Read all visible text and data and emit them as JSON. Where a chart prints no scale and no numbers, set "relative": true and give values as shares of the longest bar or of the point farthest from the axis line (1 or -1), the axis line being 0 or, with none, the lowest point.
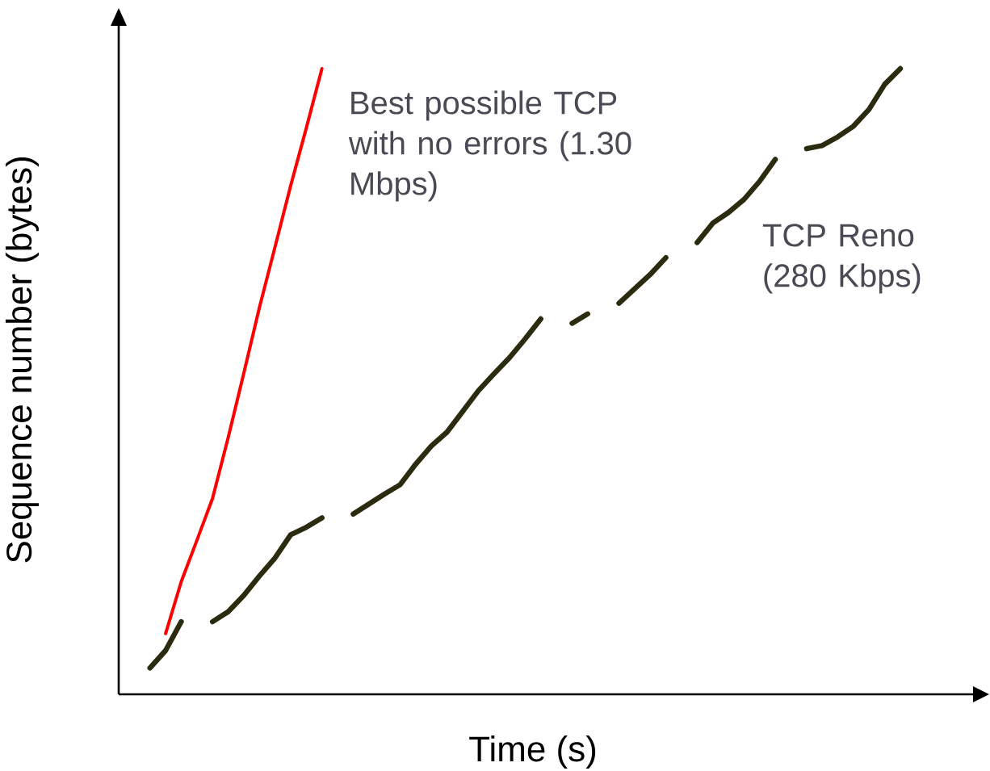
{
  "chart_data": {
    "type": "line",
    "relative": true,
    "xlabel": "Time (s)",
    "ylabel": "Sequence number (bytes)",
    "grid": false,
    "marker": "none",
    "line_style": "solid",
    "categories": [
      null,
      null,
      null,
      null,
      null,
      null,
      null,
      null,
      null,
      null,
      null,
      null,
      null,
      null,
      null,
      null,
      null,
      null,
      null,
      null,
      null,
      null,
      null,
      null,
      null,
      null,
      null,
      null,
      null,
      null,
      null,
      null,
      null,
      null,
      null,
      null,
      null,
      null,
      null,
      null,
      null,
      null,
      null,
      null,
      null,
      null,
      null,
      null,
      null,
      null,
      null
    ],
    "series": [
      {
        "name": "Best possible TCP with no errors (1.30 Mbps)",
        "color": "#ff0000",
        "values": [
          null,
          null,
          null,
          0.097,
          0.18,
          0.246,
          0.313,
          0.41,
          0.513,
          0.618,
          0.715,
          0.813,
          0.905,
          1.0,
          null,
          null,
          null,
          null,
          null,
          null,
          null,
          null,
          null,
          null,
          null,
          null,
          null,
          null,
          null,
          null,
          null,
          null,
          null,
          null,
          null,
          null,
          null,
          null,
          null,
          null,
          null,
          null,
          null,
          null,
          null,
          null,
          null,
          null,
          null,
          null,
          null
        ]
      },
      {
        "name": "TCP Reno (280 Kbps)",
        "color": "#2b2b10",
        "values": [
          null,
          null,
          0.042,
          0.07,
          0.116,
          null,
          0.116,
          0.132,
          0.158,
          0.189,
          0.218,
          0.255,
          0.267,
          0.282,
          null,
          0.288,
          0.304,
          0.32,
          0.335,
          0.368,
          0.397,
          0.419,
          0.452,
          0.485,
          0.512,
          0.538,
          0.568,
          0.6,
          null,
          0.593,
          0.608,
          null,
          0.625,
          0.648,
          0.671,
          0.698,
          null,
          0.722,
          0.753,
          0.77,
          0.791,
          0.82,
          0.855,
          null,
          0.872,
          0.877,
          0.891,
          0.908,
          0.935,
          0.975,
          1.0
        ]
      }
    ]
  }
}
